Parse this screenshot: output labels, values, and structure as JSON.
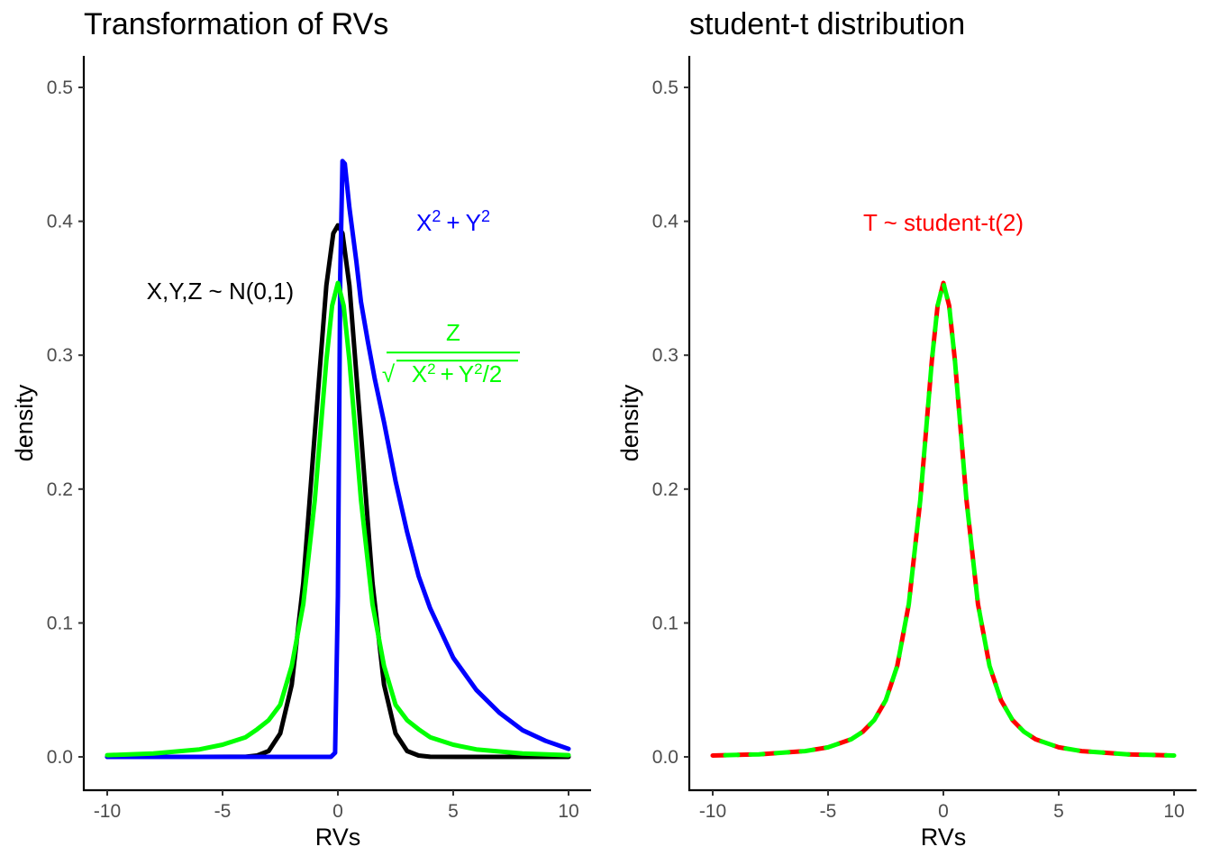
{
  "chart_data": [
    {
      "type": "line",
      "title": "Transformation of RVs",
      "xlabel": "RVs",
      "ylabel": "density",
      "xlim": [
        -11,
        11
      ],
      "ylim": [
        -0.024,
        0.525
      ],
      "xticks": [
        -10,
        -5,
        0,
        5,
        10
      ],
      "xtick_labels": [
        "-10",
        "-5",
        "0",
        "5",
        "10"
      ],
      "yticks": [
        0,
        0.1,
        0.2,
        0.3,
        0.4,
        0.5
      ],
      "ytick_labels": [
        "0.0",
        "0.1",
        "0.2",
        "0.3",
        "0.4",
        "0.5"
      ],
      "grid": false,
      "series": [
        {
          "color": "#000000",
          "dash": "solid",
          "x": [
            -10,
            -6,
            -4,
            -3.5,
            -3,
            -2.5,
            -2,
            -1.5,
            -1,
            -0.5,
            -0.2,
            0,
            0.2,
            0.5,
            1,
            1.5,
            2,
            2.5,
            3,
            3.5,
            4,
            6,
            10
          ],
          "y": [
            0,
            0,
            0.0001,
            0.001,
            0.0044,
            0.0175,
            0.054,
            0.13,
            0.242,
            0.352,
            0.391,
            0.397,
            0.391,
            0.352,
            0.242,
            0.13,
            0.054,
            0.0175,
            0.0044,
            0.001,
            0.0001,
            0,
            0
          ]
        },
        {
          "color": "#0000ff",
          "dash": "solid",
          "x": [
            -10,
            -0.3,
            -0.12,
            0,
            0.1,
            0.2,
            0.3,
            0.5,
            0.8,
            1.0,
            1.3,
            1.6,
            2.0,
            2.5,
            3.0,
            3.5,
            4.0,
            5.0,
            6.0,
            7.0,
            8.0,
            9.0,
            10.0
          ],
          "y": [
            0,
            0,
            0.003,
            0.12,
            0.36,
            0.445,
            0.443,
            0.41,
            0.37,
            0.34,
            0.31,
            0.282,
            0.25,
            0.206,
            0.168,
            0.135,
            0.111,
            0.074,
            0.05,
            0.033,
            0.02,
            0.012,
            0.006
          ]
        },
        {
          "color": "#00ff00",
          "dash": "solid",
          "x": [
            -10,
            -8,
            -6,
            -5,
            -4,
            -3.5,
            -3,
            -2.5,
            -2,
            -1.5,
            -1,
            -0.5,
            -0.25,
            0,
            0.25,
            0.5,
            1,
            1.5,
            2,
            2.5,
            3,
            3.5,
            4,
            5,
            6,
            8,
            10
          ],
          "y": [
            0.0013,
            0.0025,
            0.0056,
            0.0091,
            0.0147,
            0.0206,
            0.0274,
            0.0389,
            0.068,
            0.114,
            0.192,
            0.296,
            0.337,
            0.354,
            0.337,
            0.296,
            0.192,
            0.114,
            0.068,
            0.0389,
            0.0274,
            0.0206,
            0.0147,
            0.0091,
            0.0056,
            0.0025,
            0.0013
          ]
        }
      ],
      "annotations": [
        {
          "text": "X,Y,Z ~ N(0,1)",
          "x": -5.1,
          "y": 0.348,
          "color": "#000000"
        },
        {
          "text_base1": "X",
          "text_sup1": "2",
          "text_op": "+",
          "text_base2": "Y",
          "text_sup2": "2",
          "x": 5.0,
          "y": 0.399,
          "color": "#0000ff"
        },
        {
          "numerator": "Z",
          "denominator_x": "X",
          "denominator_x_sup": "2",
          "denominator_op": "+",
          "denominator_y": "Y",
          "denominator_y_sup": "2",
          "denominator_div": "/2",
          "radical": "√",
          "x": 5.0,
          "y": 0.335,
          "color": "#00ff00"
        }
      ]
    },
    {
      "type": "line",
      "title": "student-t distribution",
      "xlabel": "RVs",
      "ylabel": "density",
      "xlim": [
        -11,
        11
      ],
      "ylim": [
        -0.024,
        0.525
      ],
      "xticks": [
        -10,
        -5,
        0,
        5,
        10
      ],
      "xtick_labels": [
        "-10",
        "-5",
        "0",
        "5",
        "10"
      ],
      "yticks": [
        0,
        0.1,
        0.2,
        0.3,
        0.4,
        0.5
      ],
      "ytick_labels": [
        "0.0",
        "0.1",
        "0.2",
        "0.3",
        "0.4",
        "0.5"
      ],
      "grid": false,
      "series": [
        {
          "color": "#ff0000",
          "dash": "dashed",
          "x": [
            -10,
            -8,
            -6,
            -5,
            -4,
            -3.5,
            -3,
            -2.5,
            -2,
            -1.5,
            -1,
            -0.5,
            -0.25,
            0,
            0.25,
            0.5,
            1,
            1.5,
            2,
            2.5,
            3,
            3.5,
            4,
            5,
            6,
            8,
            10
          ],
          "y": [
            0.001,
            0.0019,
            0.0043,
            0.0071,
            0.0131,
            0.0187,
            0.0274,
            0.0422,
            0.068,
            0.114,
            0.192,
            0.296,
            0.337,
            0.354,
            0.337,
            0.296,
            0.192,
            0.114,
            0.068,
            0.0422,
            0.0274,
            0.0187,
            0.0131,
            0.0071,
            0.0043,
            0.0019,
            0.001
          ]
        },
        {
          "color": "#00ff00",
          "dash": "dashed-offset",
          "x": [
            -10,
            -8,
            -6,
            -5,
            -4,
            -3.5,
            -3,
            -2.5,
            -2,
            -1.5,
            -1,
            -0.5,
            -0.25,
            0,
            0.25,
            0.5,
            1,
            1.5,
            2,
            2.5,
            3,
            3.5,
            4,
            5,
            6,
            8,
            10
          ],
          "y": [
            0.001,
            0.0019,
            0.0043,
            0.0071,
            0.0131,
            0.0187,
            0.0274,
            0.0422,
            0.068,
            0.114,
            0.192,
            0.296,
            0.337,
            0.354,
            0.337,
            0.296,
            0.192,
            0.114,
            0.068,
            0.0422,
            0.0274,
            0.0187,
            0.0131,
            0.0071,
            0.0043,
            0.0019,
            0.001
          ]
        }
      ],
      "annotations": [
        {
          "text": "T ~ student-t(2)",
          "x": 0,
          "y": 0.399,
          "color": "#ff0000"
        }
      ]
    }
  ]
}
